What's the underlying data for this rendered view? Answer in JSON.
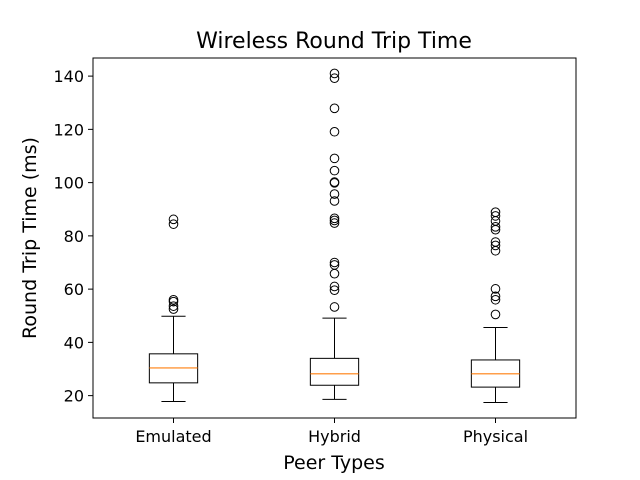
{
  "chart_data": {
    "type": "box",
    "title": "Wireless Round Trip Time",
    "xlabel": "Peer Types",
    "ylabel": "Round Trip Time (ms)",
    "ylim": [
      11.6,
      146.8
    ],
    "yticks": [
      20,
      40,
      60,
      80,
      100,
      120,
      140
    ],
    "grid": false,
    "categories": [
      "Emulated",
      "Hybrid",
      "Physical"
    ],
    "series": [
      {
        "category": "Emulated",
        "whisker_low": 17.8,
        "q1": 24.8,
        "median": 30.4,
        "q3": 35.7,
        "whisker_high": 49.8,
        "outliers": [
          52.5,
          53.6,
          55.3,
          56.0,
          84.4,
          86.2
        ]
      },
      {
        "category": "Hybrid",
        "whisker_low": 18.6,
        "q1": 23.9,
        "median": 28.2,
        "q3": 34.0,
        "whisker_high": 49.1,
        "outliers": [
          53.3,
          59.6,
          61.0,
          65.8,
          69.1,
          70.0,
          84.8,
          85.8,
          86.6,
          93.1,
          95.7,
          99.9,
          100.2,
          104.5,
          109.1,
          119.1,
          127.9,
          139.2,
          141.0
        ]
      },
      {
        "category": "Physical",
        "whisker_low": 17.4,
        "q1": 23.2,
        "median": 28.2,
        "q3": 33.4,
        "whisker_high": 45.6,
        "outliers": [
          50.5,
          56.0,
          57.3,
          60.1,
          74.4,
          76.4,
          77.7,
          82.3,
          83.4,
          85.6,
          87.5,
          88.9
        ]
      }
    ],
    "colors": {
      "box": "#000000",
      "median": "#ff7f0e",
      "outlier_edge": "#000000"
    }
  }
}
